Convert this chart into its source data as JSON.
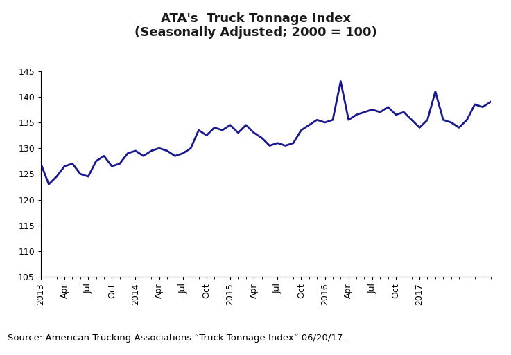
{
  "title_line1": "ATA's  Truck Tonnage Index",
  "title_line2": "(Seasonally Adjusted; 2000 = 100)",
  "source_text": "Source: American Trucking Associations “Truck Tonnage Index” 06/20/17.",
  "line_color": "#1a1a8c",
  "line_width": 2.0,
  "ylim": [
    105,
    145
  ],
  "yticks": [
    105,
    110,
    115,
    120,
    125,
    130,
    135,
    140,
    145
  ],
  "background_color": "#ffffff",
  "source_box_color": "#8bbfcc",
  "xtick_labels": [
    "2013",
    "Apr",
    "Jul",
    "Oct",
    "2014",
    "Apr",
    "Jul",
    "Oct",
    "2015",
    "Apr",
    "Jul",
    "Oct",
    "2016",
    "Apr",
    "Jul",
    "Oct",
    "2017"
  ],
  "values": [
    127.0,
    123.0,
    124.5,
    126.5,
    127.0,
    125.0,
    124.5,
    127.5,
    128.5,
    126.5,
    127.0,
    129.0,
    129.5,
    128.5,
    129.5,
    130.0,
    129.5,
    128.5,
    129.0,
    130.0,
    133.5,
    132.5,
    134.0,
    133.5,
    134.5,
    133.0,
    134.5,
    133.0,
    132.0,
    130.5,
    131.0,
    130.5,
    131.0,
    133.5,
    134.5,
    135.5,
    135.0,
    135.5,
    143.0,
    135.5,
    136.5,
    137.0,
    137.5,
    137.0,
    138.0,
    136.5,
    137.0,
    135.5,
    134.0,
    135.5,
    141.0,
    135.5,
    135.0,
    134.0,
    135.5,
    138.5,
    138.0,
    139.0
  ],
  "title_fontsize": 13,
  "tick_fontsize": 9,
  "source_fontsize": 9.5
}
